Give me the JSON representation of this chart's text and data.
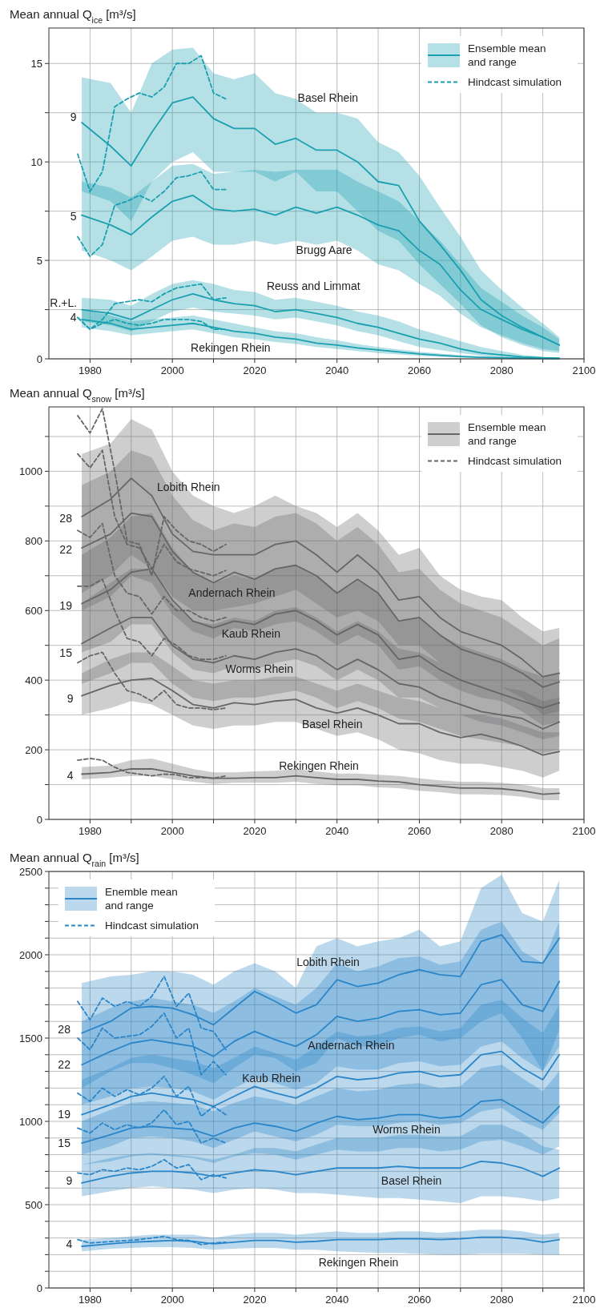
{
  "chart_data": [
    {
      "type": "line",
      "ylabel": "Mean annual Q$_{ice}$ [m³/s]",
      "xlim": [
        1970,
        2100
      ],
      "ylim": [
        0,
        16.8
      ],
      "xticks": [
        1980,
        {
          "value": 1990,
          "label": null
        },
        2000,
        {
          "value": 2010,
          "label": null
        },
        2020,
        {
          "value": 2030,
          "label": null
        },
        2040,
        {
          "value": 2050,
          "label": null
        },
        2060,
        {
          "value": 2070,
          "label": null
        },
        2080,
        {
          "value": 2090,
          "label": null
        },
        2100
      ],
      "yticks": [
        0,
        {
          "value": 2.5,
          "label": null
        },
        5,
        {
          "value": 7.5,
          "label": null
        },
        10,
        {
          "value": 12.5,
          "label": null
        },
        15
      ],
      "grid": true,
      "legend": "top right",
      "x": [
        1978,
        1985,
        1990,
        1995,
        2000,
        2005,
        2010,
        2015,
        2020,
        2025,
        2030,
        2035,
        2040,
        2045,
        2050,
        2055,
        2060,
        2065,
        2070,
        2075,
        2080,
        2085,
        2090,
        2094
      ],
      "series": [
        {
          "name": "Ensemble mean and range",
          "color": "#1aa0b0",
          "values": [
            12.0,
            10.8,
            9.8,
            11.5,
            13.0,
            13.3,
            12.2,
            11.7,
            11.7,
            10.9,
            11.2,
            10.6,
            10.6,
            10.0,
            9.0,
            8.8,
            7.0,
            5.8,
            4.5,
            3.0,
            2.2,
            1.6,
            1.1,
            0.7
          ],
          "lower": [
            8.5,
            8.0,
            7.0,
            9.0,
            10.0,
            10.5,
            9.5,
            9.5,
            9.5,
            9.0,
            9.5,
            8.5,
            8.5,
            7.5,
            6.5,
            6.0,
            4.8,
            3.8,
            2.8,
            1.7,
            1.1,
            0.7,
            0.4,
            0.3
          ],
          "upper": [
            14.3,
            14.0,
            12.5,
            15.0,
            15.7,
            15.8,
            14.5,
            14.2,
            14.5,
            13.5,
            13.2,
            12.5,
            12.5,
            12.2,
            11.0,
            10.5,
            9.3,
            7.7,
            6.2,
            4.5,
            3.5,
            2.6,
            1.8,
            1.1
          ]
        },
        {
          "color": "#1aa0b0",
          "values": [
            7.3,
            6.8,
            6.3,
            7.2,
            8.0,
            8.3,
            7.6,
            7.5,
            7.6,
            7.3,
            7.7,
            7.4,
            7.7,
            7.3,
            6.8,
            6.5,
            5.5,
            4.8,
            3.5,
            2.5,
            2.0,
            1.5,
            1.1,
            0.7
          ],
          "lower": [
            5.5,
            5.0,
            4.5,
            5.2,
            6.0,
            6.2,
            5.8,
            5.8,
            6.0,
            5.8,
            6.0,
            5.8,
            6.0,
            5.5,
            4.8,
            4.5,
            3.8,
            3.2,
            2.3,
            1.6,
            1.2,
            0.8,
            0.5,
            0.4
          ],
          "upper": [
            9.0,
            8.7,
            8.2,
            9.0,
            9.8,
            9.9,
            9.4,
            9.5,
            9.6,
            9.5,
            9.6,
            9.6,
            9.6,
            9.0,
            8.5,
            8.0,
            7.0,
            6.0,
            4.8,
            3.6,
            2.9,
            2.2,
            1.6,
            1.0
          ]
        },
        {
          "color": "#1aa0b0",
          "values": [
            2.5,
            2.3,
            2.0,
            2.5,
            3.0,
            3.3,
            3.0,
            2.8,
            2.7,
            2.4,
            2.5,
            2.3,
            2.1,
            1.8,
            1.6,
            1.3,
            1.0,
            0.8,
            0.5,
            0.3,
            0.2,
            0.1,
            0.05,
            0.03
          ],
          "lower": [
            1.9,
            1.7,
            1.4,
            1.9,
            2.4,
            2.6,
            2.4,
            2.3,
            2.2,
            2.0,
            2.1,
            1.9,
            1.7,
            1.4,
            1.2,
            0.9,
            0.6,
            0.45,
            0.3,
            0.15,
            0.08,
            0.04,
            0.02,
            0.01
          ],
          "upper": [
            3.1,
            3.0,
            2.7,
            3.3,
            3.8,
            4.0,
            3.8,
            3.5,
            3.4,
            3.0,
            3.1,
            2.9,
            2.7,
            2.4,
            2.2,
            1.9,
            1.5,
            1.2,
            0.9,
            0.6,
            0.4,
            0.2,
            0.1,
            0.06
          ]
        },
        {
          "color": "#1aa0b0",
          "values": [
            2.0,
            1.8,
            1.5,
            1.6,
            1.7,
            1.8,
            1.6,
            1.4,
            1.3,
            1.1,
            1.0,
            0.8,
            0.7,
            0.55,
            0.45,
            0.35,
            0.25,
            0.18,
            0.12,
            0.08,
            0.05,
            0.03,
            0.02,
            0.01
          ],
          "lower": [
            1.6,
            1.4,
            1.2,
            1.3,
            1.4,
            1.5,
            1.3,
            1.1,
            1.0,
            0.85,
            0.75,
            0.6,
            0.5,
            0.4,
            0.3,
            0.22,
            0.15,
            0.1,
            0.07,
            0.04,
            0.02,
            0.01,
            0.01,
            0
          ],
          "upper": [
            2.5,
            2.2,
            1.9,
            2.0,
            2.1,
            2.2,
            2.0,
            1.8,
            1.6,
            1.4,
            1.3,
            1.1,
            0.95,
            0.75,
            0.6,
            0.48,
            0.36,
            0.27,
            0.18,
            0.12,
            0.08,
            0.05,
            0.03,
            0.02
          ]
        },
        {
          "name": "Hindcast simulation",
          "color": "#1aa0b0",
          "line_style": "dashed",
          "x": [
            1977,
            1980,
            1983,
            1986,
            1989,
            1992,
            1995,
            1998,
            2001,
            2004,
            2007,
            2010,
            2013
          ],
          "values": [
            10.4,
            8.5,
            9.5,
            12.8,
            13.2,
            13.5,
            13.3,
            13.8,
            15.0,
            15.0,
            15.4,
            13.5,
            13.2
          ]
        },
        {
          "color": "#1aa0b0",
          "line_style": "dashed",
          "x": [
            1977,
            1980,
            1983,
            1986,
            1989,
            1992,
            1995,
            1998,
            2001,
            2004,
            2007,
            2010,
            2013
          ],
          "values": [
            6.2,
            5.2,
            5.8,
            7.8,
            8.0,
            8.3,
            8.0,
            8.5,
            9.2,
            9.3,
            9.5,
            8.6,
            8.6
          ]
        },
        {
          "color": "#1aa0b0",
          "line_style": "dashed",
          "x": [
            1977,
            1980,
            1983,
            1986,
            1989,
            1992,
            1995,
            1998,
            2001,
            2004,
            2007,
            2010,
            2013
          ],
          "values": [
            2.1,
            1.5,
            2.0,
            2.8,
            2.9,
            3.0,
            2.9,
            3.3,
            3.6,
            3.7,
            3.8,
            3.0,
            3.1
          ]
        },
        {
          "color": "#1aa0b0",
          "line_style": "dashed",
          "x": [
            1977,
            1980,
            1983,
            1986,
            1989,
            1992,
            1995,
            1998,
            2001,
            2004,
            2007,
            2010,
            2013
          ],
          "values": [
            2.1,
            1.5,
            1.8,
            2.0,
            1.8,
            1.7,
            1.8,
            2.0,
            2.0,
            2.0,
            1.9,
            1.5,
            1.5
          ]
        }
      ],
      "annotations": [
        "Basel Rhein",
        "Brugg Aare",
        "Reuss and Limmat",
        "Rekingen Rhein",
        "9",
        "5",
        "R.+L.",
        "4"
      ]
    },
    {
      "type": "line",
      "ylabel": "Mean annual Q$_{snow}$ [m³/s]",
      "xlim": [
        1970,
        2100
      ],
      "ylim": [
        0,
        1185
      ],
      "xticks": [
        1980,
        {
          "value": 1990,
          "label": null
        },
        2000,
        {
          "value": 2010,
          "label": null
        },
        2020,
        {
          "value": 2030,
          "label": null
        },
        2040,
        {
          "value": 2050,
          "label": null
        },
        2060,
        {
          "value": 2070,
          "label": null
        },
        2080,
        {
          "value": 2090,
          "label": null
        },
        2100
      ],
      "yticks": [
        0,
        {
          "value": 100,
          "label": null
        },
        200,
        {
          "value": 300,
          "label": null
        },
        400,
        {
          "value": 500,
          "label": null
        },
        600,
        {
          "value": 700,
          "label": null
        },
        800,
        {
          "value": 900,
          "label": null
        },
        1000,
        {
          "value": 1100,
          "label": null
        }
      ],
      "grid": true,
      "legend": "top right",
      "x": [
        1978,
        1985,
        1990,
        1995,
        2000,
        2005,
        2010,
        2015,
        2020,
        2025,
        2030,
        2035,
        2040,
        2045,
        2050,
        2055,
        2060,
        2065,
        2070,
        2075,
        2080,
        2085,
        2090,
        2094
      ],
      "series": [
        {
          "name": "Ensemble mean and range",
          "color": "#666666",
          "values": [
            870,
            920,
            980,
            930,
            820,
            770,
            760,
            760,
            760,
            790,
            800,
            760,
            710,
            760,
            710,
            630,
            640,
            580,
            540,
            520,
            500,
            460,
            410,
            420
          ],
          "lower": [
            650,
            700,
            760,
            720,
            640,
            600,
            600,
            610,
            620,
            640,
            660,
            620,
            580,
            600,
            570,
            500,
            500,
            450,
            420,
            400,
            380,
            350,
            300,
            310
          ],
          "upper": [
            1050,
            1080,
            1150,
            1120,
            1000,
            930,
            900,
            880,
            900,
            930,
            900,
            880,
            840,
            880,
            830,
            760,
            780,
            700,
            660,
            640,
            630,
            580,
            540,
            550
          ]
        },
        {
          "color": "#666666",
          "values": [
            780,
            820,
            880,
            870,
            770,
            710,
            680,
            710,
            690,
            720,
            730,
            700,
            650,
            690,
            650,
            570,
            580,
            530,
            490,
            470,
            450,
            420,
            380,
            395
          ],
          "lower": [
            600,
            640,
            700,
            680,
            590,
            540,
            520,
            550,
            540,
            560,
            570,
            540,
            500,
            530,
            500,
            430,
            440,
            400,
            370,
            350,
            340,
            310,
            270,
            280
          ],
          "upper": [
            960,
            1000,
            1060,
            1040,
            930,
            860,
            830,
            850,
            840,
            870,
            880,
            850,
            800,
            840,
            790,
            710,
            720,
            660,
            620,
            600,
            580,
            540,
            500,
            520
          ]
        },
        {
          "color": "#666666",
          "values": [
            620,
            660,
            710,
            720,
            630,
            570,
            550,
            570,
            560,
            590,
            600,
            570,
            530,
            560,
            530,
            460,
            470,
            430,
            400,
            380,
            360,
            340,
            320,
            335
          ],
          "lower": [
            480,
            510,
            560,
            560,
            480,
            430,
            420,
            440,
            430,
            450,
            460,
            440,
            400,
            430,
            400,
            350,
            350,
            320,
            300,
            280,
            270,
            250,
            230,
            240
          ],
          "upper": [
            760,
            810,
            870,
            880,
            780,
            710,
            680,
            700,
            690,
            720,
            730,
            700,
            650,
            690,
            650,
            570,
            580,
            530,
            500,
            480,
            460,
            430,
            410,
            420
          ]
        },
        {
          "color": "#666666",
          "values": [
            505,
            550,
            580,
            580,
            500,
            460,
            450,
            470,
            460,
            480,
            490,
            470,
            430,
            460,
            430,
            390,
            380,
            350,
            330,
            310,
            300,
            290,
            260,
            280
          ],
          "lower": [
            390,
            420,
            450,
            450,
            390,
            350,
            340,
            350,
            350,
            360,
            370,
            350,
            320,
            340,
            320,
            290,
            280,
            260,
            240,
            230,
            220,
            210,
            190,
            200
          ],
          "upper": [
            620,
            680,
            720,
            720,
            620,
            570,
            560,
            580,
            570,
            600,
            610,
            580,
            540,
            570,
            540,
            490,
            480,
            450,
            420,
            400,
            380,
            370,
            340,
            350
          ]
        },
        {
          "color": "#666666",
          "values": [
            355,
            385,
            400,
            405,
            370,
            330,
            320,
            335,
            330,
            340,
            345,
            320,
            305,
            320,
            300,
            275,
            275,
            250,
            235,
            245,
            230,
            210,
            185,
            195
          ],
          "lower": [
            300,
            320,
            340,
            330,
            300,
            270,
            260,
            270,
            270,
            280,
            280,
            260,
            240,
            250,
            230,
            200,
            190,
            170,
            160,
            160,
            150,
            140,
            120,
            140
          ],
          "upper": [
            420,
            460,
            480,
            480,
            440,
            400,
            390,
            400,
            400,
            410,
            410,
            390,
            370,
            390,
            370,
            350,
            340,
            320,
            300,
            300,
            290,
            270,
            250,
            250
          ]
        },
        {
          "color": "#666666",
          "values": [
            130,
            135,
            145,
            145,
            135,
            125,
            118,
            118,
            120,
            120,
            125,
            120,
            115,
            115,
            110,
            108,
            100,
            95,
            90,
            90,
            88,
            82,
            72,
            75
          ],
          "lower": [
            115,
            120,
            125,
            125,
            115,
            108,
            102,
            105,
            105,
            105,
            108,
            102,
            98,
            98,
            92,
            90,
            82,
            78,
            72,
            72,
            70,
            65,
            55,
            55
          ],
          "upper": [
            150,
            155,
            170,
            175,
            160,
            145,
            135,
            135,
            138,
            140,
            145,
            138,
            132,
            132,
            128,
            125,
            118,
            112,
            108,
            108,
            105,
            100,
            90,
            90
          ]
        },
        {
          "name": "Hindcast simulation",
          "color": "#666666",
          "line_style": "dashed",
          "x": [
            1977,
            1980,
            1983,
            1986,
            1989,
            1992,
            1995,
            1998,
            2001,
            2004,
            2007,
            2010,
            2013
          ],
          "values": [
            1160,
            1110,
            1180,
            1000,
            800,
            790,
            700,
            870,
            830,
            800,
            790,
            770,
            790
          ]
        },
        {
          "color": "#666666",
          "line_style": "dashed",
          "x": [
            1977,
            1980,
            1983,
            1986,
            1989,
            1992,
            1995,
            1998,
            2001,
            2004,
            2007,
            2010,
            2013
          ],
          "values": [
            1050,
            1010,
            1060,
            870,
            790,
            780,
            720,
            790,
            740,
            720,
            710,
            700,
            715
          ]
        },
        {
          "color": "#666666",
          "line_style": "dashed",
          "x": [
            1977,
            1980,
            1983,
            1986,
            1989,
            1992,
            1995,
            1998,
            2001,
            2004,
            2007,
            2010,
            2013
          ],
          "values": [
            830,
            810,
            850,
            700,
            650,
            640,
            590,
            640,
            600,
            600,
            580,
            570,
            580
          ]
        },
        {
          "color": "#666666",
          "line_style": "dashed",
          "x": [
            1977,
            1980,
            1983,
            1986,
            1989,
            1992,
            1995,
            1998,
            2001,
            2004,
            2007,
            2010,
            2013
          ],
          "values": [
            670,
            670,
            690,
            600,
            520,
            510,
            470,
            520,
            500,
            470,
            460,
            460,
            470
          ]
        },
        {
          "color": "#666666",
          "line_style": "dashed",
          "x": [
            1977,
            1980,
            1983,
            1986,
            1989,
            1992,
            1995,
            1998,
            2001,
            2004,
            2007,
            2010,
            2013
          ],
          "values": [
            450,
            470,
            480,
            420,
            370,
            360,
            340,
            370,
            330,
            320,
            320,
            315,
            320
          ]
        },
        {
          "color": "#666666",
          "line_style": "dashed",
          "x": [
            1977,
            1980,
            1983,
            1986,
            1989,
            1992,
            1995,
            1998,
            2001,
            2004,
            2007,
            2010,
            2013
          ],
          "values": [
            170,
            175,
            170,
            150,
            135,
            130,
            125,
            130,
            128,
            120,
            120,
            118,
            125
          ]
        }
      ],
      "annotations": [
        "Lobith Rhein",
        "Andernach Rhein",
        "Kaub Rhein",
        "Worms Rhein",
        "Basel Rhein",
        "Rekingen Rhein",
        "28",
        "22",
        "19",
        "15",
        "9",
        "4"
      ]
    },
    {
      "type": "line",
      "ylabel": "Mean annual Q$_{rain}$ [m³/s]",
      "xlim": [
        1970,
        2100
      ],
      "ylim": [
        0,
        2500
      ],
      "xticks": [
        1980,
        {
          "value": 1990,
          "label": null
        },
        2000,
        {
          "value": 2010,
          "label": null
        },
        2020,
        {
          "value": 2030,
          "label": null
        },
        2040,
        {
          "value": 2050,
          "label": null
        },
        2060,
        {
          "value": 2070,
          "label": null
        },
        2080,
        {
          "value": 2090,
          "label": null
        },
        2100
      ],
      "yticks": [
        0,
        {
          "value": 100,
          "label": null
        },
        {
          "value": 200,
          "label": null
        },
        {
          "value": 300,
          "label": null
        },
        {
          "value": 400,
          "label": null
        },
        500,
        {
          "value": 600,
          "label": null
        },
        {
          "value": 700,
          "label": null
        },
        {
          "value": 800,
          "label": null
        },
        {
          "value": 900,
          "label": null
        },
        1000,
        {
          "value": 1100,
          "label": null
        },
        {
          "value": 1200,
          "label": null
        },
        {
          "value": 1300,
          "label": null
        },
        {
          "value": 1400,
          "label": null
        },
        1500,
        {
          "value": 1600,
          "label": null
        },
        {
          "value": 1700,
          "label": null
        },
        {
          "value": 1800,
          "label": null
        },
        {
          "value": 1900,
          "label": null
        },
        2000,
        {
          "value": 2100,
          "label": null
        },
        {
          "value": 2200,
          "label": null
        },
        {
          "value": 2300,
          "label": null
        },
        {
          "value": 2400,
          "label": null
        },
        2500
      ],
      "grid": true,
      "legend": "top left",
      "x": [
        1978,
        1985,
        1990,
        1995,
        2000,
        2005,
        2010,
        2015,
        2020,
        2025,
        2030,
        2035,
        2040,
        2045,
        2050,
        2055,
        2060,
        2065,
        2070,
        2075,
        2080,
        2085,
        2090,
        2094
      ],
      "series": [
        {
          "name": "Enemble mean and range",
          "color": "#2a86c8",
          "values": [
            1530,
            1600,
            1680,
            1690,
            1680,
            1640,
            1580,
            1680,
            1780,
            1720,
            1650,
            1700,
            1850,
            1810,
            1830,
            1880,
            1910,
            1880,
            1870,
            2080,
            2120,
            1960,
            1950,
            2100
          ],
          "lower": [
            1200,
            1300,
            1350,
            1350,
            1320,
            1280,
            1230,
            1320,
            1400,
            1380,
            1300,
            1350,
            1500,
            1450,
            1450,
            1500,
            1520,
            1480,
            1500,
            1600,
            1650,
            1500,
            1300,
            1550
          ],
          "upper": [
            1830,
            1870,
            1880,
            1900,
            1900,
            1880,
            1820,
            1900,
            1950,
            1900,
            1800,
            2050,
            2100,
            2050,
            2080,
            2100,
            2150,
            2050,
            2080,
            2400,
            2480,
            2250,
            2200,
            2450
          ]
        },
        {
          "color": "#2a86c8",
          "values": [
            1340,
            1420,
            1470,
            1490,
            1470,
            1450,
            1390,
            1480,
            1540,
            1490,
            1450,
            1520,
            1630,
            1600,
            1620,
            1660,
            1670,
            1640,
            1650,
            1820,
            1850,
            1700,
            1660,
            1840
          ],
          "lower": [
            1100,
            1150,
            1200,
            1210,
            1200,
            1180,
            1130,
            1200,
            1260,
            1230,
            1190,
            1230,
            1330,
            1310,
            1310,
            1350,
            1360,
            1330,
            1340,
            1450,
            1480,
            1380,
            1300,
            1450
          ],
          "upper": [
            1600,
            1680,
            1720,
            1740,
            1720,
            1700,
            1650,
            1720,
            1800,
            1750,
            1700,
            1800,
            1950,
            1900,
            1930,
            1980,
            1990,
            1940,
            1960,
            2150,
            2200,
            2020,
            1950,
            2200
          ]
        },
        {
          "color": "#2a86c8",
          "values": [
            1040,
            1100,
            1150,
            1170,
            1150,
            1130,
            1090,
            1150,
            1210,
            1170,
            1140,
            1200,
            1270,
            1250,
            1260,
            1290,
            1300,
            1270,
            1280,
            1400,
            1420,
            1320,
            1250,
            1400
          ],
          "lower": [
            800,
            850,
            900,
            910,
            900,
            880,
            840,
            890,
            940,
            910,
            880,
            920,
            980,
            970,
            970,
            990,
            1000,
            980,
            990,
            1060,
            1080,
            1000,
            950,
            1050
          ],
          "upper": [
            1250,
            1320,
            1380,
            1400,
            1380,
            1360,
            1320,
            1380,
            1450,
            1410,
            1370,
            1450,
            1540,
            1510,
            1520,
            1560,
            1570,
            1540,
            1560,
            1700,
            1730,
            1620,
            1530,
            1700
          ]
        },
        {
          "color": "#2a86c8",
          "values": [
            870,
            920,
            960,
            970,
            960,
            950,
            910,
            960,
            990,
            970,
            940,
            990,
            1030,
            1010,
            1020,
            1040,
            1040,
            1020,
            1030,
            1120,
            1130,
            1060,
            990,
            1090
          ],
          "lower": [
            740,
            760,
            790,
            800,
            790,
            780,
            750,
            790,
            810,
            800,
            770,
            800,
            830,
            820,
            820,
            840,
            840,
            820,
            830,
            880,
            890,
            850,
            800,
            850
          ],
          "upper": [
            1000,
            1070,
            1110,
            1120,
            1110,
            1100,
            1060,
            1110,
            1150,
            1130,
            1100,
            1150,
            1200,
            1180,
            1190,
            1220,
            1230,
            1200,
            1210,
            1320,
            1340,
            1260,
            1180,
            1300
          ]
        },
        {
          "color": "#2a86c8",
          "values": [
            630,
            670,
            690,
            700,
            700,
            690,
            670,
            690,
            710,
            700,
            680,
            700,
            720,
            720,
            720,
            730,
            720,
            720,
            720,
            760,
            750,
            720,
            670,
            720
          ],
          "lower": [
            550,
            580,
            600,
            610,
            600,
            590,
            570,
            590,
            600,
            590,
            570,
            570,
            560,
            550,
            540,
            540,
            530,
            520,
            510,
            550,
            550,
            540,
            520,
            540
          ],
          "upper": [
            740,
            780,
            800,
            810,
            800,
            790,
            770,
            800,
            840,
            840,
            820,
            860,
            900,
            900,
            900,
            920,
            920,
            910,
            910,
            980,
            980,
            930,
            850,
            830
          ]
        },
        {
          "color": "#2a86c8",
          "values": [
            250,
            265,
            275,
            280,
            285,
            280,
            265,
            275,
            285,
            285,
            275,
            280,
            290,
            290,
            290,
            295,
            295,
            290,
            295,
            305,
            305,
            295,
            275,
            290
          ],
          "lower": [
            220,
            235,
            240,
            245,
            245,
            240,
            230,
            235,
            240,
            240,
            230,
            230,
            220,
            215,
            210,
            210,
            205,
            200,
            200,
            205,
            205,
            205,
            200,
            200
          ],
          "upper": [
            290,
            300,
            310,
            320,
            320,
            320,
            300,
            320,
            330,
            330,
            320,
            330,
            340,
            330,
            330,
            340,
            340,
            330,
            340,
            350,
            350,
            340,
            320,
            330
          ]
        },
        {
          "name": "Hindcast simulation",
          "color": "#2a86c8",
          "line_style": "dashed",
          "x": [
            1977,
            1980,
            1983,
            1986,
            1989,
            1992,
            1995,
            1998,
            2001,
            2004,
            2007,
            2010,
            2013
          ],
          "values": [
            1720,
            1610,
            1740,
            1690,
            1720,
            1690,
            1750,
            1870,
            1690,
            1770,
            1560,
            1540,
            1430
          ]
        },
        {
          "color": "#2a86c8",
          "line_style": "dashed",
          "x": [
            1977,
            1980,
            1983,
            1986,
            1989,
            1992,
            1995,
            1998,
            2001,
            2004,
            2007,
            2010,
            2013
          ],
          "values": [
            1500,
            1430,
            1560,
            1500,
            1510,
            1520,
            1570,
            1650,
            1500,
            1560,
            1280,
            1360,
            1280
          ]
        },
        {
          "color": "#2a86c8",
          "line_style": "dashed",
          "x": [
            1977,
            1980,
            1983,
            1986,
            1989,
            1992,
            1995,
            1998,
            2001,
            2004,
            2007,
            2010,
            2013
          ],
          "values": [
            1170,
            1120,
            1200,
            1150,
            1190,
            1160,
            1200,
            1270,
            1150,
            1210,
            1030,
            1090,
            1040
          ]
        },
        {
          "color": "#2a86c8",
          "line_style": "dashed",
          "x": [
            1977,
            1980,
            1983,
            1986,
            1989,
            1992,
            1995,
            1998,
            2001,
            2004,
            2007,
            2010,
            2013
          ],
          "values": [
            960,
            930,
            990,
            950,
            980,
            960,
            990,
            1070,
            980,
            1000,
            870,
            900,
            870
          ]
        },
        {
          "color": "#2a86c8",
          "line_style": "dashed",
          "x": [
            1977,
            1980,
            1983,
            1986,
            1989,
            1992,
            1995,
            1998,
            2001,
            2004,
            2007,
            2010,
            2013
          ],
          "values": [
            690,
            680,
            710,
            700,
            720,
            710,
            730,
            770,
            720,
            740,
            650,
            680,
            660
          ]
        },
        {
          "color": "#2a86c8",
          "line_style": "dashed",
          "x": [
            1977,
            1980,
            1983,
            1986,
            1989,
            1992,
            1995,
            1998,
            2001,
            2004,
            2007,
            2010,
            2013
          ],
          "values": [
            290,
            270,
            275,
            280,
            285,
            290,
            300,
            310,
            290,
            285,
            260,
            270,
            275
          ]
        }
      ],
      "annotations": [
        "Lobith Rhein",
        "Andernach Rhein",
        "Kaub Rhein",
        "Worms Rhein",
        "Basel Rhein",
        "Rekingen Rhein",
        "28",
        "22",
        "19",
        "15",
        "9",
        "4"
      ]
    }
  ]
}
